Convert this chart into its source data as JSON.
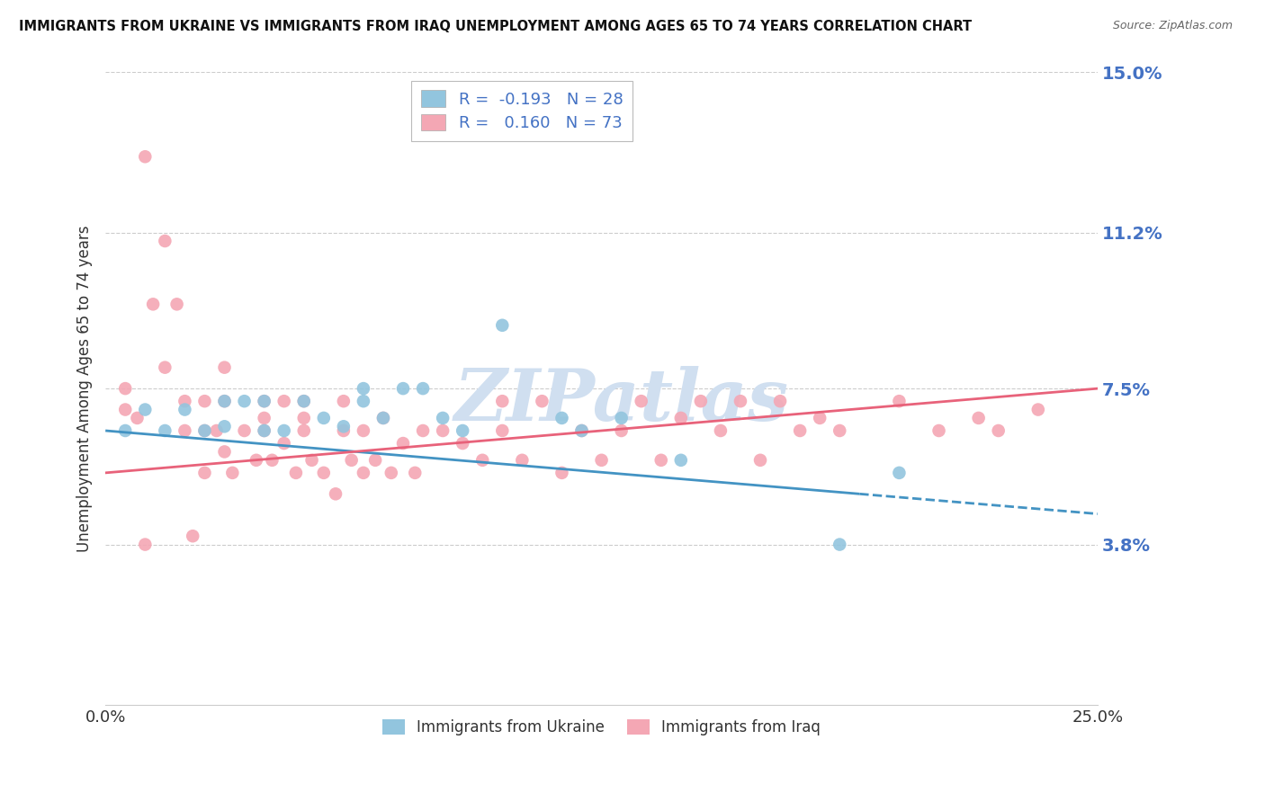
{
  "title": "IMMIGRANTS FROM UKRAINE VS IMMIGRANTS FROM IRAQ UNEMPLOYMENT AMONG AGES 65 TO 74 YEARS CORRELATION CHART",
  "source": "Source: ZipAtlas.com",
  "ylabel": "Unemployment Among Ages 65 to 74 years",
  "xlabel_ukraine": "Immigrants from Ukraine",
  "xlabel_iraq": "Immigrants from Iraq",
  "xlim": [
    0.0,
    0.25
  ],
  "ylim": [
    0.0,
    0.15
  ],
  "y_tick_right": [
    0.038,
    0.075,
    0.112,
    0.15
  ],
  "y_tick_right_labels": [
    "3.8%",
    "7.5%",
    "11.2%",
    "15.0%"
  ],
  "ukraine_R": -0.193,
  "ukraine_N": 28,
  "iraq_R": 0.16,
  "iraq_N": 73,
  "ukraine_color": "#92c5de",
  "iraq_color": "#f4a7b4",
  "ukraine_line_color": "#4393c3",
  "iraq_line_color": "#e8627a",
  "ukraine_line_dashed_end": true,
  "ukraine_scatter_x": [
    0.005,
    0.01,
    0.015,
    0.02,
    0.025,
    0.03,
    0.03,
    0.035,
    0.04,
    0.04,
    0.045,
    0.05,
    0.055,
    0.06,
    0.065,
    0.065,
    0.07,
    0.075,
    0.08,
    0.085,
    0.09,
    0.1,
    0.115,
    0.12,
    0.13,
    0.145,
    0.185,
    0.2
  ],
  "ukraine_scatter_y": [
    0.065,
    0.07,
    0.065,
    0.07,
    0.065,
    0.066,
    0.072,
    0.072,
    0.065,
    0.072,
    0.065,
    0.072,
    0.068,
    0.066,
    0.072,
    0.075,
    0.068,
    0.075,
    0.075,
    0.068,
    0.065,
    0.09,
    0.068,
    0.065,
    0.068,
    0.058,
    0.038,
    0.055
  ],
  "iraq_scatter_x": [
    0.005,
    0.008,
    0.01,
    0.012,
    0.015,
    0.018,
    0.02,
    0.022,
    0.025,
    0.025,
    0.028,
    0.03,
    0.03,
    0.032,
    0.035,
    0.038,
    0.04,
    0.04,
    0.042,
    0.045,
    0.045,
    0.048,
    0.05,
    0.05,
    0.052,
    0.055,
    0.058,
    0.06,
    0.06,
    0.062,
    0.065,
    0.065,
    0.068,
    0.07,
    0.072,
    0.075,
    0.078,
    0.08,
    0.085,
    0.09,
    0.095,
    0.1,
    0.1,
    0.105,
    0.11,
    0.115,
    0.12,
    0.125,
    0.13,
    0.135,
    0.14,
    0.145,
    0.15,
    0.155,
    0.16,
    0.165,
    0.17,
    0.175,
    0.18,
    0.185,
    0.2,
    0.21,
    0.22,
    0.225,
    0.235,
    0.005,
    0.01,
    0.015,
    0.02,
    0.025,
    0.03,
    0.04,
    0.05
  ],
  "iraq_scatter_y": [
    0.07,
    0.068,
    0.13,
    0.095,
    0.11,
    0.095,
    0.065,
    0.04,
    0.065,
    0.072,
    0.065,
    0.06,
    0.072,
    0.055,
    0.065,
    0.058,
    0.065,
    0.072,
    0.058,
    0.062,
    0.072,
    0.055,
    0.065,
    0.072,
    0.058,
    0.055,
    0.05,
    0.065,
    0.072,
    0.058,
    0.065,
    0.055,
    0.058,
    0.068,
    0.055,
    0.062,
    0.055,
    0.065,
    0.065,
    0.062,
    0.058,
    0.065,
    0.072,
    0.058,
    0.072,
    0.055,
    0.065,
    0.058,
    0.065,
    0.072,
    0.058,
    0.068,
    0.072,
    0.065,
    0.072,
    0.058,
    0.072,
    0.065,
    0.068,
    0.065,
    0.072,
    0.065,
    0.068,
    0.065,
    0.07,
    0.075,
    0.038,
    0.08,
    0.072,
    0.055,
    0.08,
    0.068,
    0.068
  ],
  "background_color": "#ffffff",
  "grid_color": "#cccccc",
  "watermark_text": "ZIPatlas",
  "watermark_color": "#d0dff0",
  "label_color": "#4472c4",
  "r_value_color": "#4472c4"
}
